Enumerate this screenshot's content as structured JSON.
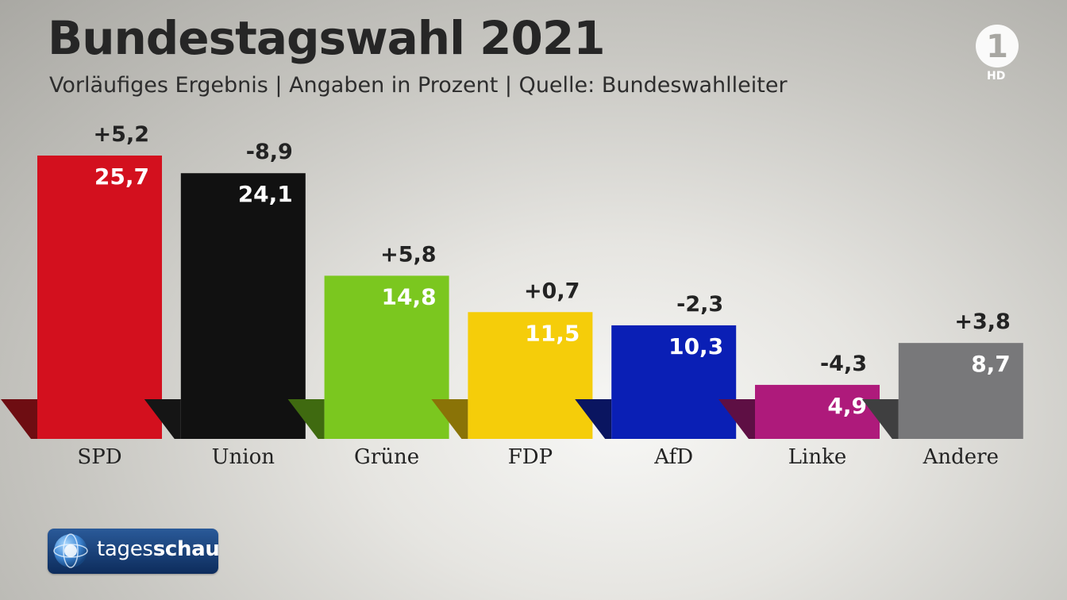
{
  "header": {
    "title": "Bundestagswahl 2021",
    "subtitle": "Vorläufiges Ergebnis | Angaben in Prozent | Quelle: Bundeswahlleiter"
  },
  "broadcaster": {
    "logo_text": "1",
    "badge": "HD"
  },
  "footer": {
    "logo_part1": "tages",
    "logo_part2": "schau"
  },
  "chart_data": {
    "type": "bar",
    "title": "Bundestagswahl 2021",
    "subtitle": "Vorläufiges Ergebnis | Angaben in Prozent | Quelle: Bundeswahlleiter",
    "categories": [
      "SPD",
      "Union",
      "Grüne",
      "FDP",
      "AfD",
      "Linke",
      "Andere"
    ],
    "values": [
      25.7,
      24.1,
      14.8,
      11.5,
      10.3,
      4.9,
      8.7
    ],
    "value_labels": [
      "25,7",
      "24,1",
      "14,8",
      "11,5",
      "10,3",
      "4,9",
      "8,7"
    ],
    "changes": [
      "+5,2",
      "-8,9",
      "+5,8",
      "+0,7",
      "-2,3",
      "-4,3",
      "+3,8"
    ],
    "colors": [
      "#d3101e",
      "#111111",
      "#7bc71f",
      "#f5cd0a",
      "#0a1fb5",
      "#ae1a7b",
      "#78787a"
    ],
    "shadow_colors": [
      "#6e0d12",
      "#151515",
      "#3f6a10",
      "#8a7307",
      "#0a1560",
      "#5e0f44",
      "#3f3f40"
    ],
    "label_colors": [
      "#ffffff",
      "#ffffff",
      "#ffffff",
      "#ffffff",
      "#ffffff",
      "#ffffff",
      "#ffffff"
    ],
    "ylim": [
      0,
      25.7
    ],
    "xlabel": "",
    "ylabel": ""
  }
}
